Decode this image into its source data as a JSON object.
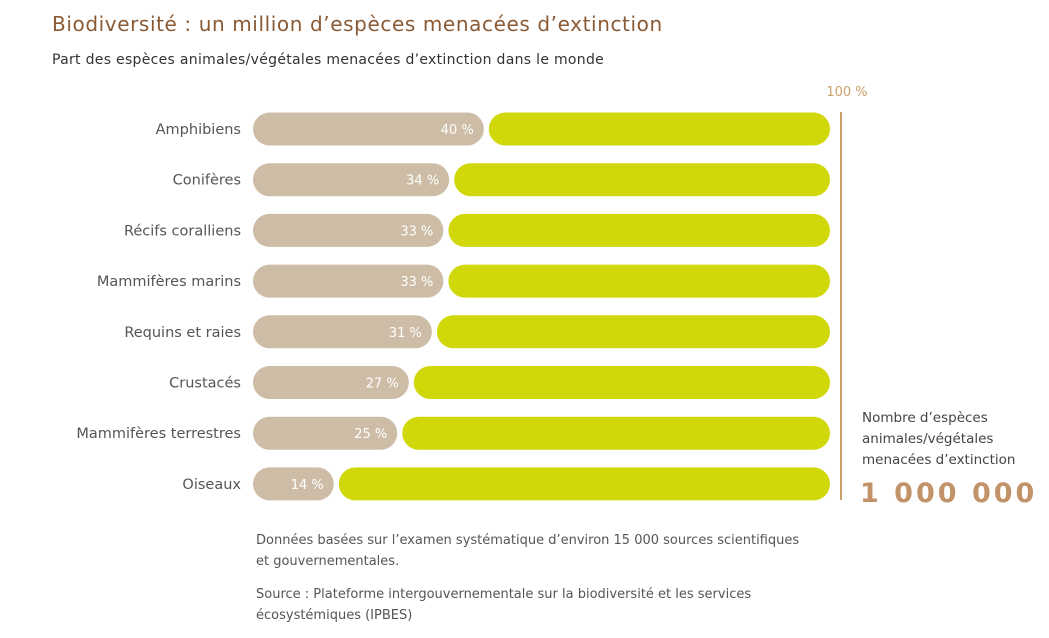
{
  "chart_data": {
    "type": "bar",
    "orientation": "horizontal",
    "stacked": true,
    "title": "Biodiversité : un million d’espèces menacées d’extinction",
    "subtitle": "Part des espèces animales/végétales menacées d’extinction dans le monde",
    "max_label": "100 %",
    "xlim": [
      0,
      100
    ],
    "categories": [
      "Amphibiens",
      "Conifères",
      "Récifs coralliens",
      "Mammifères marins",
      "Requins et raies",
      "Crustacés",
      "Mammifères terrestres",
      "Oiseaux"
    ],
    "values": [
      40,
      34,
      33,
      33,
      31,
      27,
      25,
      14
    ],
    "value_labels": [
      "40 %",
      "34 %",
      "33 %",
      "33 %",
      "31 %",
      "27 %",
      "25 %",
      "14 %"
    ],
    "colors": {
      "threatened": "#cdbda6",
      "remainder": "#d1d80a",
      "accent": "#c29368"
    },
    "grid": false,
    "legend": "none"
  },
  "side": {
    "note": "Nombre d’espèces animales/végétales menacées d’extinction",
    "number": "1 000 000"
  },
  "notes": {
    "basis": "Données basées sur l’examen systématique d’environ 15 000 sources scientifiques et gouvernementales.",
    "source_label": "Source",
    "source_text": " : Plateforme intergouvernementale sur la biodiversité et les services écosystémiques (IPBES)"
  }
}
